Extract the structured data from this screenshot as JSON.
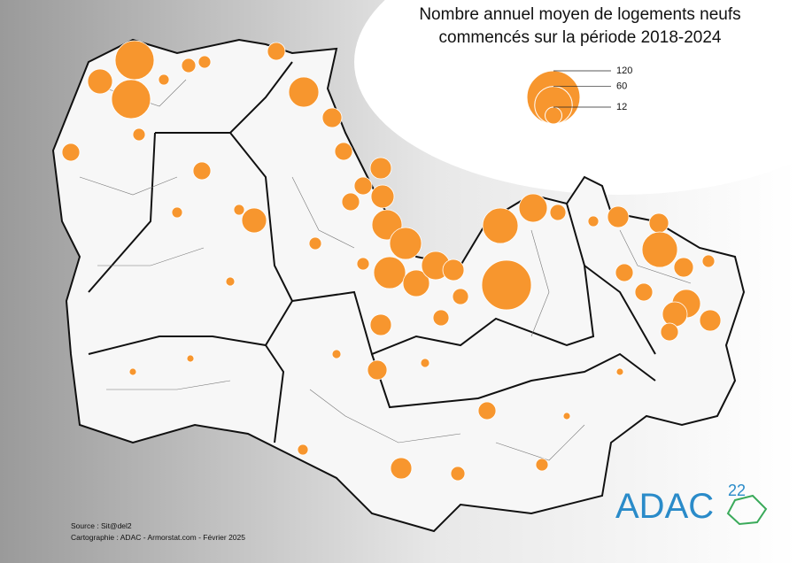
{
  "title": [
    "Nombre annuel moyen de logements neufs",
    "commencés sur la période 2018-2024"
  ],
  "legend": {
    "values": [
      120,
      60,
      12
    ],
    "color": "#f7962e"
  },
  "source": [
    "Source : Sit@del2",
    "Cartographie : ADAC - Armorstat.com - Février 2025"
  ],
  "logo": {
    "name": "ADAC",
    "number": "22"
  }
}
